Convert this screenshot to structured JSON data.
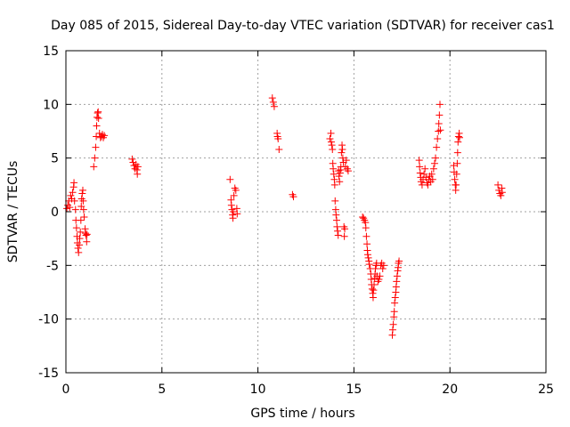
{
  "chart_data": {
    "type": "scatter",
    "title": "Day 085 of 2015, Sidereal Day-to-day VTEC variation (SDTVAR) for receiver cas1",
    "xlabel": "GPS time / hours",
    "ylabel": "SDTVAR / TECUs",
    "xlim": [
      0,
      25
    ],
    "ylim": [
      -15,
      15
    ],
    "xticks": [
      0,
      5,
      10,
      15,
      20,
      25
    ],
    "yticks": [
      -15,
      -10,
      -5,
      0,
      5,
      10,
      15
    ],
    "grid": true,
    "marker": "+",
    "color": "#ff0000",
    "points": [
      [
        0.05,
        0.3
      ],
      [
        0.1,
        0.6
      ],
      [
        0.15,
        1.0
      ],
      [
        0.2,
        0.4
      ],
      [
        0.25,
        1.5
      ],
      [
        0.3,
        1.2
      ],
      [
        0.35,
        1.8
      ],
      [
        0.4,
        2.3
      ],
      [
        0.42,
        2.7
      ],
      [
        0.45,
        1.0
      ],
      [
        0.5,
        0.2
      ],
      [
        0.52,
        -0.8
      ],
      [
        0.55,
        -1.5
      ],
      [
        0.58,
        -2.3
      ],
      [
        0.6,
        -2.9
      ],
      [
        0.63,
        -3.4
      ],
      [
        0.66,
        -3.8
      ],
      [
        0.7,
        -3.1
      ],
      [
        0.72,
        -2.5
      ],
      [
        0.75,
        -1.9
      ],
      [
        0.78,
        -0.8
      ],
      [
        0.8,
        0.5
      ],
      [
        0.82,
        1.2
      ],
      [
        0.85,
        1.7
      ],
      [
        0.88,
        2.0
      ],
      [
        0.9,
        1.0
      ],
      [
        0.92,
        0.2
      ],
      [
        0.95,
        -0.5
      ],
      [
        1.0,
        -1.6
      ],
      [
        1.02,
        -2.0
      ],
      [
        1.05,
        -2.2
      ],
      [
        1.08,
        -2.8
      ],
      [
        1.1,
        -2.1
      ],
      [
        1.45,
        4.2
      ],
      [
        1.5,
        5.0
      ],
      [
        1.55,
        6.0
      ],
      [
        1.58,
        7.0
      ],
      [
        1.6,
        8.0
      ],
      [
        1.62,
        8.8
      ],
      [
        1.65,
        9.2
      ],
      [
        1.68,
        9.3
      ],
      [
        1.7,
        8.7
      ],
      [
        1.75,
        7.3
      ],
      [
        1.8,
        6.9
      ],
      [
        1.85,
        7.0
      ],
      [
        1.9,
        7.2
      ],
      [
        1.95,
        6.9
      ],
      [
        2.0,
        7.1
      ],
      [
        3.45,
        4.9
      ],
      [
        3.5,
        4.6
      ],
      [
        3.55,
        4.3
      ],
      [
        3.6,
        4.0
      ],
      [
        3.65,
        4.4
      ],
      [
        3.7,
        3.9
      ],
      [
        3.72,
        3.5
      ],
      [
        3.75,
        4.2
      ],
      [
        8.55,
        3.0
      ],
      [
        8.6,
        1.1
      ],
      [
        8.62,
        0.6
      ],
      [
        8.65,
        0.2
      ],
      [
        8.68,
        -0.3
      ],
      [
        8.7,
        -0.6
      ],
      [
        8.72,
        0.0
      ],
      [
        8.75,
        1.5
      ],
      [
        8.8,
        2.2
      ],
      [
        8.85,
        2.0
      ],
      [
        8.9,
        0.3
      ],
      [
        8.92,
        -0.2
      ],
      [
        10.75,
        10.6
      ],
      [
        10.8,
        10.2
      ],
      [
        10.85,
        9.8
      ],
      [
        11.0,
        7.3
      ],
      [
        11.02,
        7.0
      ],
      [
        11.05,
        6.8
      ],
      [
        11.1,
        5.8
      ],
      [
        11.8,
        1.6
      ],
      [
        11.85,
        1.4
      ],
      [
        13.75,
        6.8
      ],
      [
        13.8,
        7.3
      ],
      [
        13.82,
        6.5
      ],
      [
        13.85,
        6.2
      ],
      [
        13.88,
        5.8
      ],
      [
        13.9,
        4.5
      ],
      [
        13.92,
        4.0
      ],
      [
        13.95,
        3.5
      ],
      [
        13.98,
        3.0
      ],
      [
        14.0,
        2.5
      ],
      [
        14.02,
        1.0
      ],
      [
        14.05,
        0.2
      ],
      [
        14.07,
        -0.3
      ],
      [
        14.1,
        -0.8
      ],
      [
        14.12,
        -1.4
      ],
      [
        14.15,
        -1.8
      ],
      [
        14.18,
        -2.2
      ],
      [
        14.2,
        3.8
      ],
      [
        14.22,
        3.3
      ],
      [
        14.25,
        2.8
      ],
      [
        14.28,
        3.6
      ],
      [
        14.3,
        3.9
      ],
      [
        14.32,
        4.2
      ],
      [
        14.35,
        5.5
      ],
      [
        14.38,
        6.2
      ],
      [
        14.4,
        5.8
      ],
      [
        14.42,
        5.0
      ],
      [
        14.45,
        4.6
      ],
      [
        14.48,
        -1.4
      ],
      [
        14.5,
        -2.3
      ],
      [
        14.52,
        -1.6
      ],
      [
        14.55,
        4.2
      ],
      [
        14.6,
        4.8
      ],
      [
        14.65,
        4.0
      ],
      [
        14.7,
        3.8
      ],
      [
        15.45,
        -0.5
      ],
      [
        15.5,
        -0.6
      ],
      [
        15.55,
        -0.8
      ],
      [
        15.6,
        -1.0
      ],
      [
        15.62,
        -1.5
      ],
      [
        15.65,
        -2.3
      ],
      [
        15.68,
        -3.0
      ],
      [
        15.7,
        -3.6
      ],
      [
        15.72,
        -4.0
      ],
      [
        15.75,
        -4.3
      ],
      [
        15.78,
        -4.6
      ],
      [
        15.8,
        -4.9
      ],
      [
        15.85,
        -5.3
      ],
      [
        15.88,
        -5.8
      ],
      [
        15.9,
        -6.3
      ],
      [
        15.92,
        -6.8
      ],
      [
        15.95,
        -7.2
      ],
      [
        15.98,
        -7.6
      ],
      [
        16.0,
        -8.0
      ],
      [
        16.02,
        -7.3
      ],
      [
        16.05,
        -6.8
      ],
      [
        16.08,
        -6.2
      ],
      [
        16.1,
        -5.8
      ],
      [
        16.12,
        -5.3
      ],
      [
        16.15,
        -5.0
      ],
      [
        16.18,
        -4.8
      ],
      [
        16.2,
        -6.0
      ],
      [
        16.25,
        -6.5
      ],
      [
        16.3,
        -6.3
      ],
      [
        16.35,
        -6.0
      ],
      [
        16.4,
        -5.0
      ],
      [
        16.45,
        -4.8
      ],
      [
        16.5,
        -5.3
      ],
      [
        16.55,
        -5.0
      ],
      [
        17.0,
        -11.5
      ],
      [
        17.02,
        -11.0
      ],
      [
        17.05,
        -10.5
      ],
      [
        17.08,
        -9.8
      ],
      [
        17.1,
        -9.3
      ],
      [
        17.12,
        -8.5
      ],
      [
        17.15,
        -8.0
      ],
      [
        17.18,
        -7.5
      ],
      [
        17.2,
        -7.0
      ],
      [
        17.22,
        -6.5
      ],
      [
        17.25,
        -6.0
      ],
      [
        17.28,
        -5.5
      ],
      [
        17.3,
        -5.2
      ],
      [
        17.32,
        -4.8
      ],
      [
        17.35,
        -4.6
      ],
      [
        18.4,
        4.8
      ],
      [
        18.42,
        4.2
      ],
      [
        18.45,
        3.6
      ],
      [
        18.48,
        3.2
      ],
      [
        18.5,
        2.8
      ],
      [
        18.55,
        2.5
      ],
      [
        18.6,
        3.0
      ],
      [
        18.65,
        3.5
      ],
      [
        18.7,
        4.0
      ],
      [
        18.75,
        3.2
      ],
      [
        18.8,
        2.7
      ],
      [
        18.85,
        2.5
      ],
      [
        18.9,
        3.0
      ],
      [
        18.95,
        3.3
      ],
      [
        19.0,
        2.8
      ],
      [
        19.05,
        3.5
      ],
      [
        19.1,
        3.0
      ],
      [
        19.15,
        4.0
      ],
      [
        19.2,
        4.5
      ],
      [
        19.25,
        5.0
      ],
      [
        19.3,
        6.0
      ],
      [
        19.35,
        6.8
      ],
      [
        19.4,
        7.5
      ],
      [
        19.42,
        8.2
      ],
      [
        19.45,
        9.0
      ],
      [
        19.48,
        10.0
      ],
      [
        19.5,
        7.6
      ],
      [
        20.2,
        4.3
      ],
      [
        20.22,
        3.7
      ],
      [
        20.25,
        3.0
      ],
      [
        20.28,
        2.5
      ],
      [
        20.3,
        2.0
      ],
      [
        20.32,
        2.5
      ],
      [
        20.35,
        3.5
      ],
      [
        20.38,
        4.5
      ],
      [
        20.4,
        5.5
      ],
      [
        20.42,
        6.5
      ],
      [
        20.45,
        7.0
      ],
      [
        20.48,
        7.3
      ],
      [
        20.5,
        6.9
      ],
      [
        22.5,
        2.5
      ],
      [
        22.55,
        2.0
      ],
      [
        22.6,
        1.7
      ],
      [
        22.65,
        1.5
      ],
      [
        22.7,
        2.2
      ],
      [
        22.72,
        1.8
      ]
    ]
  }
}
